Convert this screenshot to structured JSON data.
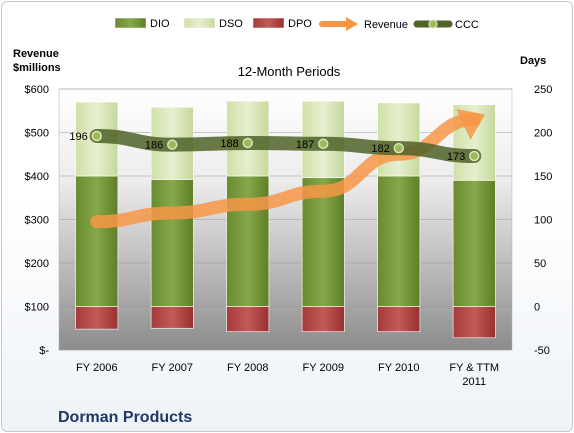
{
  "chart_data": {
    "type": "bar",
    "title": "12-Month Periods",
    "company": "Dorman Products",
    "categories": [
      [
        "FY 2006"
      ],
      [
        "FY 2007"
      ],
      [
        "FY 2008"
      ],
      [
        "FY 2009"
      ],
      [
        "FY 2010"
      ],
      [
        "FY & TTM",
        "2011"
      ]
    ],
    "left_axis": {
      "label_lines": [
        "Revenue",
        "$millions"
      ],
      "range": [
        0,
        600
      ],
      "ticks": [
        0,
        100,
        200,
        300,
        400,
        500,
        600
      ],
      "tick_labels": [
        "$-",
        "$100",
        "$200",
        "$300",
        "$400",
        "$500",
        "$600"
      ]
    },
    "right_axis": {
      "label": "Days",
      "range": [
        -50,
        250
      ],
      "ticks": [
        -50,
        0,
        50,
        100,
        150,
        200,
        250
      ],
      "tick_labels": [
        "-50",
        "0",
        "50",
        "100",
        "150",
        "200",
        "250"
      ]
    },
    "legend": {
      "position": "top",
      "items": [
        {
          "name": "DIO",
          "kind": "bar",
          "color": "#77933c"
        },
        {
          "name": "DSO",
          "kind": "bar",
          "color": "#d7e4bd"
        },
        {
          "name": "DPO",
          "kind": "bar",
          "color": "#b94a48"
        },
        {
          "name": "Revenue",
          "kind": "arrow",
          "color": "#f79646"
        },
        {
          "name": "CCC",
          "kind": "line",
          "color": "#4f6228"
        }
      ]
    },
    "series": [
      {
        "name": "DIO",
        "axis": "right",
        "values": [
          150,
          146,
          150,
          148,
          150,
          145
        ]
      },
      {
        "name": "DSO",
        "axis": "right",
        "values": [
          85,
          83,
          86,
          88,
          84,
          87
        ]
      },
      {
        "name": "DPO",
        "axis": "right",
        "values": [
          -26,
          -25,
          -29,
          -29,
          -29,
          -36
        ]
      },
      {
        "name": "CCC",
        "axis": "right",
        "values": [
          196,
          186,
          188,
          187,
          182,
          173
        ],
        "labels": [
          "196",
          "186",
          "188",
          "187",
          "182",
          "173"
        ]
      },
      {
        "name": "Revenue",
        "axis": "left",
        "values": [
          295,
          315,
          335,
          365,
          450,
          530
        ]
      }
    ],
    "grid": true
  }
}
